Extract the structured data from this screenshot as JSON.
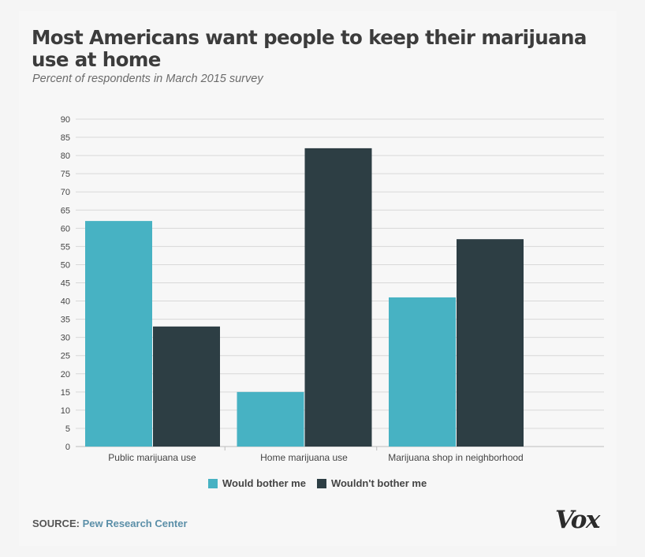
{
  "header": {
    "title": "Most Americans want people to keep their marijuana use at home",
    "subtitle": "Percent of respondents in March 2015 survey"
  },
  "footer": {
    "source_label": "SOURCE:",
    "source_name": "Pew Research Center",
    "logo": "Vox"
  },
  "colors": {
    "would_bother": "#47b2c3",
    "wouldnt_bother": "#2d3e44",
    "grid": "#d8d8d8",
    "axis_text": "#444444"
  },
  "chart_data": {
    "type": "bar",
    "title": "Most Americans want people to keep their marijuana use at home",
    "subtitle": "Percent of respondents in March 2015 survey",
    "xlabel": "",
    "ylabel": "",
    "ylim": [
      0,
      90
    ],
    "yticks": [
      0,
      5,
      10,
      15,
      20,
      25,
      30,
      35,
      40,
      45,
      50,
      55,
      60,
      65,
      70,
      75,
      80,
      85,
      90
    ],
    "grid": true,
    "legend_position": "bottom",
    "categories": [
      "Public marijuana use",
      "Home marijuana use",
      "Marijuana shop in neighborhood"
    ],
    "series": [
      {
        "name": "Would bother me",
        "values": [
          62,
          15,
          41
        ]
      },
      {
        "name": "Wouldn't bother me",
        "values": [
          33,
          82,
          57
        ]
      }
    ]
  }
}
